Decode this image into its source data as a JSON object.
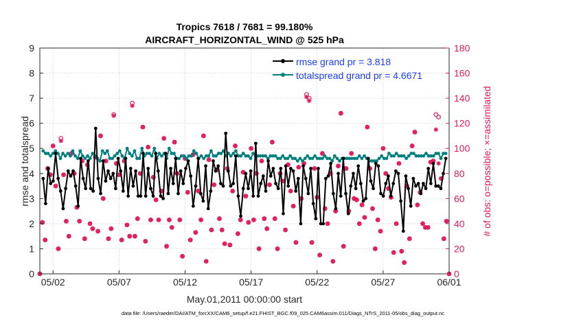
{
  "chart_data": {
    "type": "line",
    "title": [
      "Tropics 7618 / 7681 = 99.180%",
      "AIRCRAFT_HORIZONTAL_WIND @ 525 hPa"
    ],
    "xlabel": "May.01,2011 00:00:00 start",
    "ylabel_left": "rmse and totalspread",
    "ylabel_right": "# of obs: o=possible; ×=assimilated",
    "footer": "data file: /Users/raeder/DAI/ATM_forcXX/CAM6_setup/f.e21.FHIST_BGC.f09_025.CAM6assim.011/Diags_NTrS_2011-05/obs_diag_output.nc",
    "xlim": [
      0.5,
      31.5
    ],
    "ylim_left": [
      0,
      9
    ],
    "ylim_right": [
      0,
      180
    ],
    "x_ticks": [
      {
        "x": 1.5,
        "label": "05/02"
      },
      {
        "x": 6.5,
        "label": "05/07"
      },
      {
        "x": 11.5,
        "label": "05/12"
      },
      {
        "x": 16.5,
        "label": "05/17"
      },
      {
        "x": 21.5,
        "label": "05/22"
      },
      {
        "x": 26.5,
        "label": "05/27"
      },
      {
        "x": 31.5,
        "label": "06/01"
      }
    ],
    "y_ticks_left": [
      "0",
      "1",
      "2",
      "3",
      "4",
      "5",
      "6",
      "7",
      "8",
      "9"
    ],
    "y_ticks_right": [
      "0",
      "20",
      "40",
      "60",
      "80",
      "100",
      "120",
      "140",
      "160",
      "180"
    ],
    "series": [
      {
        "name": "rmse grand pr = 3.818",
        "color": "#000000",
        "axis": "left",
        "values": [
          3.8,
          2.8,
          4.2,
          3.6,
          3.7,
          4.8,
          3.8,
          3.3,
          2.6,
          3.4,
          4.1,
          3.9,
          4.1,
          3.5,
          2.7,
          4.6,
          3.8,
          3.4,
          4.5,
          3.4,
          3.3,
          5.8,
          3.8,
          3.2,
          4.5,
          3.7,
          4.1,
          3.8,
          4.0,
          3.4,
          4.6,
          4.1,
          3.3,
          4.6,
          3.1,
          4.2,
          3.5,
          4.1,
          3.1,
          3.1,
          4.8,
          3.1,
          4.2,
          3.4,
          3.1,
          4.8,
          4.1,
          3.1,
          3.0,
          4.8,
          3.2,
          4.2,
          3.6,
          4.6,
          3.2,
          4.1,
          3.6,
          4.2,
          4.5,
          3.9,
          2.7,
          3.5,
          4.6,
          3.2,
          2.9,
          4.3,
          2.6,
          3.3,
          4.5,
          4.1,
          4.3,
          3.6,
          3.5,
          5.6,
          4.1,
          3.5,
          3.6,
          4.7,
          3.1,
          2.3,
          3.4,
          4.0,
          3.4,
          4.1,
          3.1,
          5.2,
          3.1,
          3.6,
          3.9,
          3.3,
          4.5,
          3.9,
          4.2,
          3.6,
          3.4,
          4.2,
          2.4,
          4.3,
          3.5,
          4.2,
          4.1,
          3.3,
          3.8,
          2.0,
          4.3,
          3.8,
          3.2,
          4.2,
          2.8,
          2.2,
          4.2,
          2.0,
          2.0,
          3.8,
          3.9,
          4.4,
          3.2,
          2.6,
          4.0,
          3.1,
          4.6,
          3.2,
          2.4,
          3.5,
          4.0,
          3.4,
          4.3,
          3.6,
          2.9,
          3.0,
          4.6,
          3.7,
          3.4,
          4.4,
          4.3,
          3.2,
          3.1,
          3.6,
          3.9,
          3.1,
          3.6,
          4.1,
          4.0,
          2.9,
          1.7,
          3.9,
          3.4,
          2.7,
          3.8,
          3.5,
          3.6,
          3.2,
          3.6,
          3.4,
          4.2,
          3.6,
          4.4,
          3.5,
          3.5,
          3.4,
          4.0,
          4.6
        ]
      },
      {
        "name": "totalspread grand pr = 4.6671",
        "color": "#007f7f",
        "axis": "left",
        "values": [
          4.9,
          4.8,
          4.8,
          4.7,
          4.8,
          4.9,
          4.8,
          4.6,
          4.8,
          4.7,
          4.8,
          4.7,
          4.9,
          4.7,
          4.6,
          4.9,
          4.7,
          4.6,
          4.7,
          4.6,
          4.8,
          4.7,
          4.6,
          4.5,
          4.9,
          4.8,
          4.9,
          4.6,
          4.6,
          4.7,
          4.8,
          4.9,
          4.7,
          4.6,
          5.0,
          4.8,
          4.7,
          4.9,
          4.6,
          4.6,
          5.0,
          4.7,
          4.8,
          4.8,
          4.7,
          5.0,
          4.6,
          4.8,
          4.7,
          4.8,
          4.6,
          5.0,
          4.8,
          4.8,
          4.6,
          4.6,
          4.7,
          4.7,
          4.6,
          4.7,
          4.7,
          4.9,
          4.8,
          4.6,
          4.7,
          4.6,
          4.7,
          4.7,
          4.9,
          4.7,
          4.7,
          4.8,
          4.8,
          4.9,
          4.7,
          4.8,
          4.7,
          4.8,
          4.9,
          4.7,
          4.7,
          4.8,
          4.7,
          4.7,
          4.6,
          4.8,
          4.7,
          4.7,
          4.7,
          4.7,
          4.7,
          4.6,
          4.7,
          4.7,
          4.7,
          4.6,
          4.6,
          4.7,
          4.6,
          4.6,
          4.7,
          4.6,
          4.6,
          4.5,
          4.6,
          4.5,
          4.6,
          4.7,
          4.6,
          4.6,
          4.7,
          4.6,
          4.6,
          4.6,
          4.7,
          4.6,
          4.6,
          4.5,
          4.7,
          4.6,
          4.5,
          4.6,
          4.6,
          4.6,
          4.6,
          4.6,
          4.6,
          4.6,
          4.7,
          4.6,
          4.7,
          4.6,
          4.5,
          4.5,
          4.5,
          4.5,
          4.6,
          4.7,
          4.6,
          4.6,
          4.8,
          4.7,
          4.7,
          4.8,
          4.7,
          4.7,
          4.7,
          4.6,
          4.7,
          4.8,
          4.8,
          4.7,
          4.7,
          4.7,
          4.7,
          4.8,
          4.7,
          4.7,
          4.7,
          4.8,
          4.8,
          4.6,
          4.8,
          4.8
        ]
      }
    ],
    "obs_possible": [
      [
        0.5,
        0
      ],
      [
        0.7,
        41
      ],
      [
        0.9,
        27
      ],
      [
        1.1,
        84
      ],
      [
        1.3,
        79
      ],
      [
        1.5,
        102
      ],
      [
        1.7,
        70
      ],
      [
        1.9,
        20
      ],
      [
        2.1,
        108
      ],
      [
        2.3,
        79
      ],
      [
        2.5,
        42
      ],
      [
        2.7,
        30
      ],
      [
        2.9,
        96
      ],
      [
        3.1,
        80
      ],
      [
        3.3,
        53
      ],
      [
        3.5,
        42
      ],
      [
        3.7,
        90
      ],
      [
        3.9,
        28
      ],
      [
        4.1,
        87
      ],
      [
        4.3,
        40
      ],
      [
        4.5,
        36
      ],
      [
        4.7,
        93
      ],
      [
        4.9,
        34
      ],
      [
        5.1,
        110
      ],
      [
        5.3,
        60
      ],
      [
        5.5,
        90
      ],
      [
        5.7,
        28
      ],
      [
        5.9,
        36
      ],
      [
        6.1,
        127
      ],
      [
        6.3,
        88
      ],
      [
        6.5,
        79
      ],
      [
        6.7,
        27
      ],
      [
        6.9,
        90
      ],
      [
        7.1,
        39
      ],
      [
        7.3,
        30
      ],
      [
        7.5,
        136
      ],
      [
        7.7,
        30
      ],
      [
        7.9,
        44
      ],
      [
        8.1,
        80
      ],
      [
        8.3,
        117
      ],
      [
        8.5,
        26
      ],
      [
        8.7,
        101
      ],
      [
        8.9,
        43
      ],
      [
        9.1,
        77
      ],
      [
        9.3,
        59
      ],
      [
        9.5,
        43
      ],
      [
        9.7,
        66
      ],
      [
        9.9,
        108
      ],
      [
        10.1,
        22
      ],
      [
        10.3,
        43
      ],
      [
        10.5,
        37
      ],
      [
        10.7,
        105
      ],
      [
        10.9,
        80
      ],
      [
        11.1,
        43
      ],
      [
        11.3,
        14
      ],
      [
        11.5,
        92
      ],
      [
        11.7,
        65
      ],
      [
        11.9,
        27
      ],
      [
        12.1,
        95
      ],
      [
        12.3,
        33
      ],
      [
        12.5,
        66
      ],
      [
        12.7,
        43
      ],
      [
        12.9,
        110
      ],
      [
        13.1,
        10
      ],
      [
        13.3,
        91
      ],
      [
        13.5,
        35
      ],
      [
        13.7,
        71
      ],
      [
        13.9,
        83
      ],
      [
        14.1,
        44
      ],
      [
        14.3,
        35
      ],
      [
        14.5,
        24
      ],
      [
        14.7,
        84
      ],
      [
        14.9,
        23
      ],
      [
        15.1,
        66
      ],
      [
        15.3,
        102
      ],
      [
        15.5,
        32
      ],
      [
        15.7,
        43
      ],
      [
        15.9,
        81
      ],
      [
        16.1,
        62
      ],
      [
        16.3,
        41
      ],
      [
        16.5,
        100
      ],
      [
        16.7,
        43
      ],
      [
        16.9,
        80
      ],
      [
        17.1,
        20
      ],
      [
        17.3,
        90
      ],
      [
        17.5,
        44
      ],
      [
        17.7,
        36
      ],
      [
        17.9,
        71
      ],
      [
        18.1,
        105
      ],
      [
        18.3,
        44
      ],
      [
        18.5,
        20
      ],
      [
        18.7,
        80
      ],
      [
        18.9,
        74
      ],
      [
        19.1,
        35
      ],
      [
        19.3,
        87
      ],
      [
        19.5,
        66
      ],
      [
        19.7,
        54
      ],
      [
        19.9,
        25
      ],
      [
        20.1,
        85
      ],
      [
        20.3,
        60
      ],
      [
        20.5,
        88
      ],
      [
        20.7,
        143
      ],
      [
        20.9,
        140
      ],
      [
        21.1,
        25
      ],
      [
        21.3,
        84
      ],
      [
        21.5,
        61
      ],
      [
        21.7,
        15
      ],
      [
        21.9,
        96
      ],
      [
        22.1,
        52
      ],
      [
        22.3,
        40
      ],
      [
        22.5,
        80
      ],
      [
        22.7,
        10
      ],
      [
        22.9,
        50
      ],
      [
        23.1,
        86
      ],
      [
        23.3,
        128
      ],
      [
        23.5,
        22
      ],
      [
        23.7,
        84
      ],
      [
        23.9,
        50
      ],
      [
        24.1,
        96
      ],
      [
        24.3,
        60
      ],
      [
        24.5,
        59
      ],
      [
        24.7,
        40
      ],
      [
        24.9,
        55
      ],
      [
        25.1,
        45
      ],
      [
        25.3,
        117
      ],
      [
        25.5,
        84
      ],
      [
        25.7,
        52
      ],
      [
        25.9,
        20
      ],
      [
        26.1,
        43
      ],
      [
        26.3,
        34
      ],
      [
        26.5,
        100
      ],
      [
        26.7,
        80
      ],
      [
        26.9,
        68
      ],
      [
        27.1,
        61
      ],
      [
        27.3,
        17
      ],
      [
        27.5,
        40
      ],
      [
        27.7,
        88
      ],
      [
        27.9,
        18
      ],
      [
        28.1,
        9
      ],
      [
        28.3,
        70
      ],
      [
        28.5,
        28
      ],
      [
        28.7,
        102
      ],
      [
        28.9,
        113
      ],
      [
        29.1,
        55
      ],
      [
        29.3,
        65
      ],
      [
        29.5,
        40
      ],
      [
        29.7,
        37
      ],
      [
        29.9,
        37
      ],
      [
        30.1,
        89
      ],
      [
        30.3,
        90
      ],
      [
        30.5,
        127
      ],
      [
        30.7,
        125
      ],
      [
        30.9,
        76
      ],
      [
        31.1,
        28
      ],
      [
        31.3,
        42
      ],
      [
        31.5,
        0
      ]
    ],
    "obs_assimilated": [
      [
        0.5,
        0
      ],
      [
        0.7,
        41
      ],
      [
        0.9,
        27
      ],
      [
        1.1,
        84
      ],
      [
        1.3,
        79
      ],
      [
        1.5,
        102
      ],
      [
        1.7,
        70
      ],
      [
        1.9,
        20
      ],
      [
        2.1,
        106
      ],
      [
        2.3,
        79
      ],
      [
        2.5,
        42
      ],
      [
        2.7,
        30
      ],
      [
        2.9,
        96
      ],
      [
        3.1,
        80
      ],
      [
        3.3,
        53
      ],
      [
        3.5,
        42
      ],
      [
        3.7,
        90
      ],
      [
        3.9,
        28
      ],
      [
        4.1,
        87
      ],
      [
        4.3,
        40
      ],
      [
        4.5,
        36
      ],
      [
        4.7,
        93
      ],
      [
        4.9,
        34
      ],
      [
        5.1,
        110
      ],
      [
        5.3,
        60
      ],
      [
        5.5,
        90
      ],
      [
        5.7,
        28
      ],
      [
        5.9,
        36
      ],
      [
        6.1,
        126
      ],
      [
        6.3,
        88
      ],
      [
        6.5,
        79
      ],
      [
        6.7,
        27
      ],
      [
        6.9,
        90
      ],
      [
        7.1,
        39
      ],
      [
        7.3,
        30
      ],
      [
        7.5,
        134
      ],
      [
        7.7,
        30
      ],
      [
        7.9,
        44
      ],
      [
        8.1,
        80
      ],
      [
        8.3,
        117
      ],
      [
        8.5,
        26
      ],
      [
        8.7,
        101
      ],
      [
        8.9,
        43
      ],
      [
        9.1,
        77
      ],
      [
        9.3,
        59
      ],
      [
        9.5,
        43
      ],
      [
        9.7,
        66
      ],
      [
        9.9,
        108
      ],
      [
        10.1,
        22
      ],
      [
        10.3,
        43
      ],
      [
        10.5,
        37
      ],
      [
        10.7,
        105
      ],
      [
        10.9,
        80
      ],
      [
        11.1,
        43
      ],
      [
        11.3,
        14
      ],
      [
        11.5,
        92
      ],
      [
        11.7,
        65
      ],
      [
        11.9,
        27
      ],
      [
        12.1,
        95
      ],
      [
        12.3,
        33
      ],
      [
        12.5,
        66
      ],
      [
        12.7,
        43
      ],
      [
        12.9,
        110
      ],
      [
        13.1,
        10
      ],
      [
        13.3,
        91
      ],
      [
        13.5,
        35
      ],
      [
        13.7,
        71
      ],
      [
        13.9,
        83
      ],
      [
        14.1,
        44
      ],
      [
        14.3,
        35
      ],
      [
        14.5,
        24
      ],
      [
        14.7,
        84
      ],
      [
        14.9,
        23
      ],
      [
        15.1,
        66
      ],
      [
        15.3,
        102
      ],
      [
        15.5,
        32
      ],
      [
        15.7,
        43
      ],
      [
        15.9,
        81
      ],
      [
        16.1,
        62
      ],
      [
        16.3,
        41
      ],
      [
        16.5,
        100
      ],
      [
        16.7,
        43
      ],
      [
        16.9,
        80
      ],
      [
        17.1,
        20
      ],
      [
        17.3,
        90
      ],
      [
        17.5,
        44
      ],
      [
        17.7,
        36
      ],
      [
        17.9,
        71
      ],
      [
        18.1,
        105
      ],
      [
        18.3,
        44
      ],
      [
        18.5,
        20
      ],
      [
        18.7,
        80
      ],
      [
        18.9,
        74
      ],
      [
        19.1,
        35
      ],
      [
        19.3,
        87
      ],
      [
        19.5,
        66
      ],
      [
        19.7,
        54
      ],
      [
        19.9,
        25
      ],
      [
        20.1,
        85
      ],
      [
        20.3,
        60
      ],
      [
        20.5,
        88
      ],
      [
        20.7,
        141
      ],
      [
        20.9,
        138
      ],
      [
        21.1,
        25
      ],
      [
        21.3,
        84
      ],
      [
        21.5,
        61
      ],
      [
        21.7,
        15
      ],
      [
        21.9,
        96
      ],
      [
        22.1,
        52
      ],
      [
        22.3,
        40
      ],
      [
        22.5,
        80
      ],
      [
        22.7,
        10
      ],
      [
        22.9,
        50
      ],
      [
        23.1,
        86
      ],
      [
        23.3,
        128
      ],
      [
        23.5,
        22
      ],
      [
        23.7,
        84
      ],
      [
        23.9,
        50
      ],
      [
        24.1,
        96
      ],
      [
        24.3,
        60
      ],
      [
        24.5,
        59
      ],
      [
        24.7,
        40
      ],
      [
        24.9,
        55
      ],
      [
        25.1,
        45
      ],
      [
        25.3,
        117
      ],
      [
        25.5,
        84
      ],
      [
        25.7,
        52
      ],
      [
        25.9,
        20
      ],
      [
        26.1,
        43
      ],
      [
        26.3,
        34
      ],
      [
        26.5,
        100
      ],
      [
        26.7,
        80
      ],
      [
        26.9,
        68
      ],
      [
        27.1,
        61
      ],
      [
        27.3,
        17
      ],
      [
        27.5,
        40
      ],
      [
        27.7,
        88
      ],
      [
        27.9,
        18
      ],
      [
        28.1,
        9
      ],
      [
        28.3,
        70
      ],
      [
        28.5,
        28
      ],
      [
        28.7,
        102
      ],
      [
        28.9,
        113
      ],
      [
        29.1,
        55
      ],
      [
        29.3,
        65
      ],
      [
        29.5,
        40
      ],
      [
        29.7,
        37
      ],
      [
        29.9,
        37
      ],
      [
        30.1,
        89
      ],
      [
        30.3,
        90
      ],
      [
        30.5,
        115
      ],
      [
        30.7,
        88
      ],
      [
        30.9,
        76
      ],
      [
        31.1,
        28
      ],
      [
        31.3,
        42
      ],
      [
        31.5,
        0
      ]
    ],
    "colors": {
      "rmse": "#000000",
      "spread": "#007f7f",
      "obs": "#e0195a",
      "legend_text": "#1a3cff",
      "axis": "#262626"
    },
    "grid": true,
    "legend_position": "top-right"
  }
}
